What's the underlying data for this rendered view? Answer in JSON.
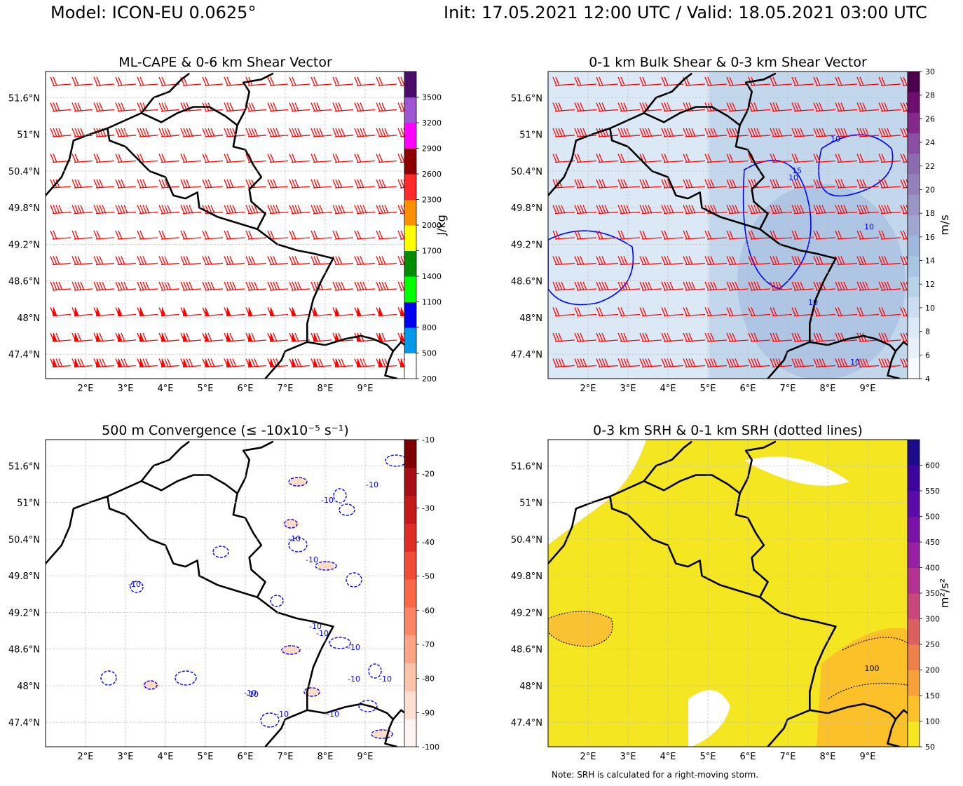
{
  "header": {
    "model": "Model: ICON-EU 0.0625°",
    "time": "Init: 17.05.2021 12:00 UTC / Valid: 18.05.2021 03:00 UTC"
  },
  "note": "Note: SRH is calculated for a right-moving storm.",
  "axes": {
    "lat_labels": [
      "51.6°N",
      "51°N",
      "50.4°N",
      "49.8°N",
      "49.2°N",
      "48.6°N",
      "48°N",
      "47.4°N"
    ],
    "lon_labels": [
      "2°E",
      "3°E",
      "4°E",
      "5°E",
      "6°E",
      "7°E",
      "8°E",
      "9°E"
    ]
  },
  "panels": [
    {
      "id": "cape",
      "title": "ML-CAPE & 0-6 km Shear Vector",
      "colorbar": {
        "label": "J/kg",
        "ticks": [
          "3500",
          "3200",
          "2900",
          "2600",
          "2300",
          "2000",
          "1700",
          "1400",
          "1100",
          "800",
          "500",
          "200"
        ],
        "colors": [
          "#ffffff",
          "#0098e8",
          "#0000f0",
          "#00ff00",
          "#008c00",
          "#ffff00",
          "#ff9100",
          "#ff2a2a",
          "#8c0000",
          "#ff00ff",
          "#9d57d2",
          "#4b0c6b"
        ]
      }
    },
    {
      "id": "shear",
      "title": "0-1 km Bulk Shear & 0-3 km Shear Vector",
      "contour_labels": [
        "10",
        "10",
        "10",
        "10",
        "10",
        "15"
      ],
      "colorbar": {
        "label": "m/s",
        "ticks": [
          "30",
          "28",
          "26",
          "24",
          "22",
          "20",
          "18",
          "16",
          "14",
          "12",
          "10",
          "8",
          "6",
          "4"
        ],
        "colors": [
          "#f7fbff",
          "#e8f1fa",
          "#dce9f6",
          "#cbdef1",
          "#b6d3ea",
          "#a8c6e4",
          "#9db8dc",
          "#9fa7d1",
          "#9b95c6",
          "#9480bb",
          "#8c6bb1",
          "#8a4fa2",
          "#84288c",
          "#6e0f70",
          "#4d004b"
        ]
      }
    },
    {
      "id": "conv",
      "title": "500 m Convergence (≤ -10x10⁻⁵ s⁻¹)",
      "contour_labels": [
        "-10",
        "-10",
        "-10",
        "-10",
        "-10",
        "-10",
        "-10",
        "-10",
        "-10",
        "-10",
        "-10",
        "-10",
        "-10",
        "-10"
      ],
      "colorbar": {
        "label": "",
        "ticks": [
          "-10",
          "-20",
          "-30",
          "-40",
          "-50",
          "-60",
          "-70",
          "-80",
          "-90",
          "-100"
        ],
        "colors": [
          "#fff5f0",
          "#fee0d2",
          "#fcc3ab",
          "#fca486",
          "#fc8565",
          "#fa6848",
          "#f04b36",
          "#de2d26",
          "#c51a1c",
          "#a50f15",
          "#7f0000"
        ]
      }
    },
    {
      "id": "srh",
      "title": "0-3 km SRH & 0-1 km SRH (dotted lines)",
      "contour_labels": [
        "100"
      ],
      "colorbar": {
        "label": "m²/s²",
        "ticks": [
          "600",
          "550",
          "500",
          "450",
          "400",
          "350",
          "300",
          "250",
          "200",
          "150",
          "100",
          "50"
        ],
        "colors": [
          "#f5e622",
          "#fcc029",
          "#f8a13a",
          "#ef7f4b",
          "#dd6060",
          "#c9477a",
          "#b33291",
          "#961fa2",
          "#7913a8",
          "#5a0aa8",
          "#3d049e",
          "#1d0b8c"
        ]
      }
    }
  ]
}
